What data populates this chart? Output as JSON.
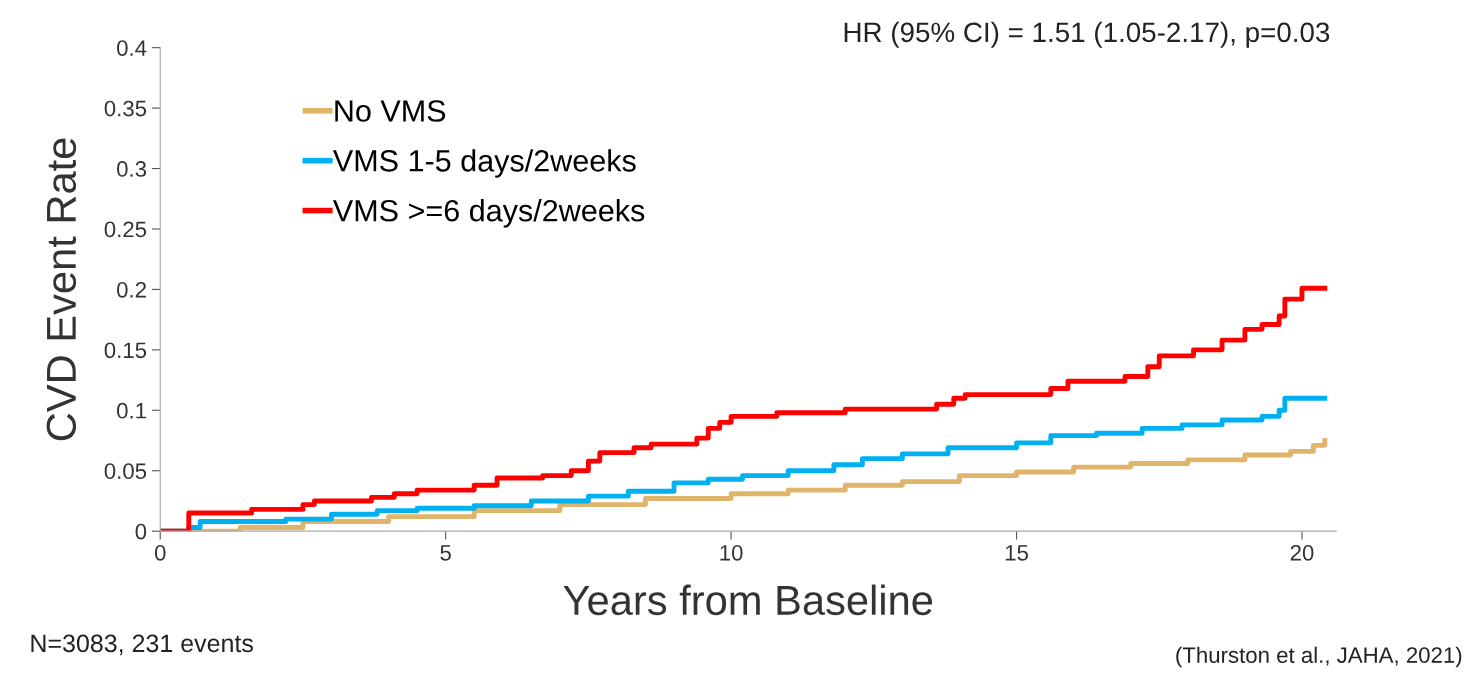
{
  "chart_data": {
    "type": "step",
    "xlabel": "Years from Baseline",
    "ylabel": "CVD Event Rate",
    "xlim": [
      0,
      20.6
    ],
    "xticks": [
      0,
      5,
      10,
      15,
      20
    ],
    "ylim": [
      0,
      0.4
    ],
    "yticks": [
      0,
      0.05,
      0.1,
      0.15,
      0.2,
      0.25,
      0.3,
      0.35,
      0.4
    ],
    "grid": false,
    "legend": "top left",
    "line_style": "solid",
    "marker": "none",
    "series": [
      {
        "name": "No VMS",
        "color": "#e0b46a",
        "x": [
          0,
          1.4,
          2.5,
          4,
          5.5,
          7,
          8.5,
          10,
          11,
          12,
          13,
          14,
          15,
          16,
          17,
          18,
          19,
          19.8,
          20.2,
          20.4
        ],
        "values": [
          0,
          0.003,
          0.008,
          0.012,
          0.017,
          0.022,
          0.027,
          0.031,
          0.034,
          0.038,
          0.041,
          0.046,
          0.049,
          0.053,
          0.056,
          0.059,
          0.063,
          0.066,
          0.071,
          0.075
        ]
      },
      {
        "name": "VMS 1-5 days/2weeks",
        "color": "#00b0f0",
        "x": [
          0,
          0.5,
          0.7,
          2.2,
          3.0,
          3.8,
          4.5,
          5.5,
          6.5,
          7.5,
          8.2,
          9.0,
          9.6,
          10.2,
          11.0,
          11.8,
          12.3,
          13.0,
          13.8,
          15.0,
          15.6,
          16.4,
          17.2,
          17.9,
          18.6,
          19.3,
          19.6,
          19.7,
          20.4
        ],
        "values": [
          0,
          0.003,
          0.008,
          0.01,
          0.014,
          0.017,
          0.019,
          0.021,
          0.025,
          0.029,
          0.033,
          0.04,
          0.043,
          0.046,
          0.05,
          0.055,
          0.06,
          0.064,
          0.069,
          0.073,
          0.079,
          0.081,
          0.085,
          0.088,
          0.092,
          0.095,
          0.1,
          0.11,
          0.11
        ]
      },
      {
        "name": "VMS >=6 days/2weeks",
        "color": "#ff0000",
        "x": [
          0,
          0.5,
          1.6,
          2.5,
          2.7,
          3.7,
          4.1,
          4.5,
          5.5,
          5.9,
          6.7,
          7.2,
          7.5,
          7.7,
          8.3,
          8.6,
          9.4,
          9.6,
          9.8,
          10.0,
          10.8,
          12.0,
          13.6,
          13.9,
          14.1,
          15.6,
          15.9,
          16.9,
          17.3,
          17.5,
          18.1,
          18.6,
          19.0,
          19.3,
          19.6,
          19.7,
          20.0,
          20.4
        ],
        "values": [
          0,
          0.015,
          0.018,
          0.022,
          0.025,
          0.028,
          0.031,
          0.034,
          0.038,
          0.044,
          0.046,
          0.05,
          0.058,
          0.065,
          0.069,
          0.072,
          0.077,
          0.085,
          0.09,
          0.095,
          0.098,
          0.101,
          0.105,
          0.11,
          0.113,
          0.118,
          0.124,
          0.128,
          0.136,
          0.145,
          0.15,
          0.158,
          0.167,
          0.171,
          0.178,
          0.192,
          0.201,
          0.201
        ]
      }
    ],
    "annotations": [
      "HR (95% CI) = 1.51 (1.05-2.17), p=0.03",
      "N=3083, 231 events",
      "(Thurston et al., JAHA, 2021)"
    ]
  }
}
